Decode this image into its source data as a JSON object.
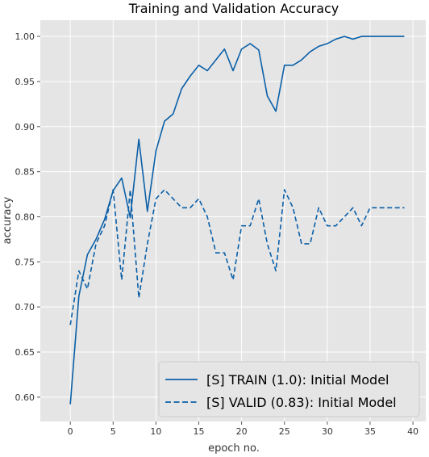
{
  "chart_data": {
    "type": "line",
    "title": "Training and Validation Accuracy",
    "xlabel": "epoch no.",
    "ylabel": "accuracy",
    "xlim": [
      -3.5,
      41.5
    ],
    "ylim": [
      0.573,
      1.018
    ],
    "xticks": [
      0,
      5,
      10,
      15,
      20,
      25,
      30,
      35,
      40
    ],
    "yticks": [
      0.6,
      0.65,
      0.7,
      0.75,
      0.8,
      0.85,
      0.9,
      0.95,
      1.0
    ],
    "grid": true,
    "legend_position": "lower-right",
    "series": [
      {
        "name": "[S] TRAIN (1.0): Initial Model",
        "style": "solid",
        "color": "#0a5fa8",
        "x": [
          0,
          1,
          2,
          3,
          4,
          5,
          6,
          7,
          8,
          9,
          10,
          11,
          12,
          13,
          14,
          15,
          16,
          17,
          18,
          19,
          20,
          21,
          22,
          23,
          24,
          25,
          26,
          27,
          28,
          29,
          30,
          31,
          32,
          33,
          34,
          35,
          36,
          37,
          38,
          39
        ],
        "values": [
          0.592,
          0.712,
          0.758,
          0.775,
          0.797,
          0.829,
          0.843,
          0.799,
          0.886,
          0.806,
          0.873,
          0.906,
          0.914,
          0.942,
          0.956,
          0.968,
          0.962,
          0.974,
          0.986,
          0.962,
          0.986,
          0.992,
          0.985,
          0.934,
          0.917,
          0.968,
          0.968,
          0.974,
          0.983,
          0.989,
          0.992,
          0.997,
          1.0,
          0.997,
          1.0,
          1.0,
          1.0,
          1.0,
          1.0,
          1.0
        ]
      },
      {
        "name": "[S] VALID (0.83): Initial Model",
        "style": "dashed",
        "color": "#0a5fa8",
        "x": [
          0,
          1,
          2,
          3,
          4,
          5,
          6,
          7,
          8,
          9,
          10,
          11,
          12,
          13,
          14,
          15,
          16,
          17,
          18,
          19,
          20,
          21,
          22,
          23,
          24,
          25,
          26,
          27,
          28,
          29,
          30,
          31,
          32,
          33,
          34,
          35,
          36,
          37,
          38,
          39
        ],
        "values": [
          0.68,
          0.74,
          0.72,
          0.77,
          0.79,
          0.83,
          0.73,
          0.83,
          0.71,
          0.77,
          0.82,
          0.83,
          0.82,
          0.81,
          0.81,
          0.82,
          0.8,
          0.76,
          0.76,
          0.73,
          0.79,
          0.79,
          0.82,
          0.77,
          0.74,
          0.83,
          0.81,
          0.77,
          0.77,
          0.81,
          0.79,
          0.79,
          0.8,
          0.81,
          0.79,
          0.81,
          0.81,
          0.81,
          0.81,
          0.81
        ]
      }
    ]
  }
}
